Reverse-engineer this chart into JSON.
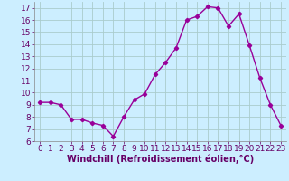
{
  "x": [
    0,
    1,
    2,
    3,
    4,
    5,
    6,
    7,
    8,
    9,
    10,
    11,
    12,
    13,
    14,
    15,
    16,
    17,
    18,
    19,
    20,
    21,
    22,
    23
  ],
  "y": [
    9.2,
    9.2,
    9.0,
    7.8,
    7.8,
    7.5,
    7.3,
    6.4,
    8.0,
    9.4,
    9.9,
    11.5,
    12.5,
    13.7,
    16.0,
    16.3,
    17.1,
    17.0,
    15.5,
    16.5,
    13.9,
    11.2,
    9.0,
    7.3
  ],
  "line_color": "#990099",
  "marker": "D",
  "marker_size": 2.2,
  "bg_color": "#cceeff",
  "grid_color": "#aacccc",
  "xlabel": "Windchill (Refroidissement éolien,°C)",
  "xlabel_fontsize": 7.0,
  "ylim": [
    6,
    17.5
  ],
  "xlim": [
    -0.5,
    23.5
  ],
  "yticks": [
    6,
    7,
    8,
    9,
    10,
    11,
    12,
    13,
    14,
    15,
    16,
    17
  ],
  "xticks": [
    0,
    1,
    2,
    3,
    4,
    5,
    6,
    7,
    8,
    9,
    10,
    11,
    12,
    13,
    14,
    15,
    16,
    17,
    18,
    19,
    20,
    21,
    22,
    23
  ],
  "tick_fontsize": 6.5,
  "line_width": 1.0,
  "label_color": "#660066"
}
